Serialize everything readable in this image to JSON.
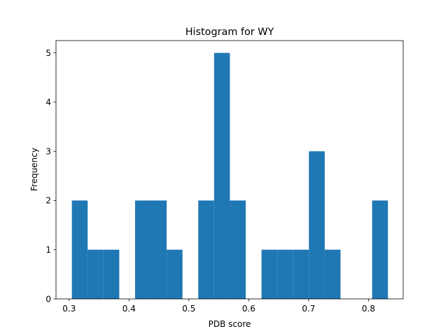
{
  "chart_data": {
    "type": "bar",
    "title": "Histogram for WY",
    "xlabel": "PDB score",
    "ylabel": "Frequency",
    "bar_color": "#1f77b4",
    "xlim": [
      0.278,
      0.858
    ],
    "ylim": [
      0,
      5.25
    ],
    "xticks": [
      0.3,
      0.4,
      0.5,
      0.6,
      0.7,
      0.8
    ],
    "xtick_labels": [
      "0.3",
      "0.4",
      "0.5",
      "0.6",
      "0.7",
      "0.8"
    ],
    "yticks": [
      0,
      1,
      2,
      3,
      4,
      5
    ],
    "ytick_labels": [
      "0",
      "1",
      "2",
      "3",
      "4",
      "5"
    ],
    "bin_edges": [
      0.3045,
      0.3309,
      0.3573,
      0.3837,
      0.4101,
      0.4365,
      0.4629,
      0.4893,
      0.5157,
      0.5421,
      0.5685,
      0.5949,
      0.6213,
      0.6477,
      0.6741,
      0.7005,
      0.7269,
      0.7533,
      0.7797,
      0.8061,
      0.8325
    ],
    "values": [
      2,
      1,
      1,
      0,
      2,
      2,
      1,
      0,
      2,
      5,
      2,
      0,
      1,
      1,
      1,
      3,
      1,
      0,
      0,
      2
    ],
    "grid": false,
    "legend": "none"
  }
}
